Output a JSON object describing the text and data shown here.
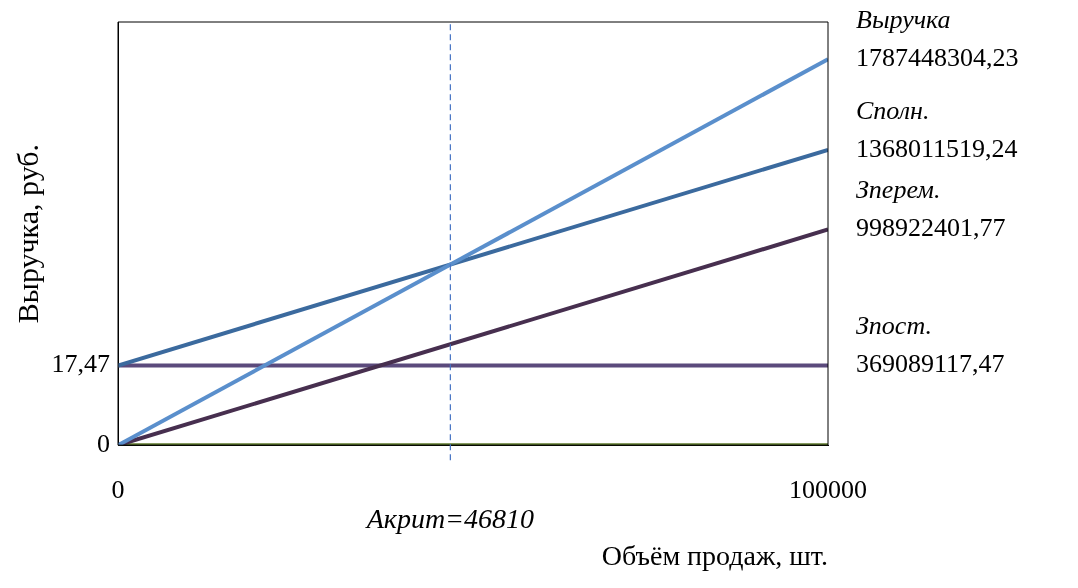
{
  "chart_data": {
    "type": "line",
    "xlabel": "Объём продаж, шт.",
    "ylabel": "Выручка, руб.",
    "x": [
      0,
      100000
    ],
    "xlim": [
      0,
      100000
    ],
    "xticks": [
      0,
      100000
    ],
    "ylim": [
      0,
      1960000000
    ],
    "annotations": [
      {
        "text": "17,47",
        "x": 0,
        "y": 369089117.47
      },
      {
        "text": "0",
        "x": 0,
        "y": 0
      }
    ],
    "grid": false,
    "legend": false,
    "marker": "none",
    "line_style": "solid",
    "series": [
      {
        "name": "Выручка",
        "color": "#5a8fcc",
        "values": [
          0,
          1787448304.23
        ],
        "value_labels": [
          null,
          "1787448304,23"
        ]
      },
      {
        "name": "Сполн.",
        "color": "#3b6a9e",
        "values": [
          369089117.47,
          1368011519.24
        ],
        "value_labels": [
          null,
          "1368011519,24"
        ]
      },
      {
        "name": "Зперем.",
        "color": "#472f4f",
        "values": [
          0,
          998922401.77
        ],
        "value_labels": [
          null,
          "998922401,77"
        ]
      },
      {
        "name": "Зпост.",
        "color": "#5b4a7c",
        "values": [
          369089117.47,
          369089117.47
        ],
        "value_labels": [
          null,
          "369089117,47"
        ]
      },
      {
        "color": "#5f7a2e",
        "values": [
          0,
          0
        ]
      }
    ],
    "ref_lines": [
      {
        "axis": "x",
        "value": 46810,
        "label": "Акрит=46810",
        "color": "#4472c4",
        "line_style": "dashed"
      }
    ]
  }
}
